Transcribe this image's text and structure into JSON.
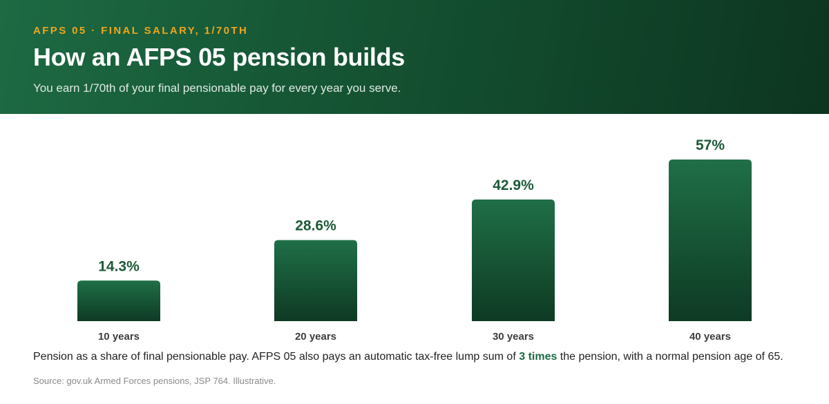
{
  "header": {
    "eyebrow": "AFPS 05 · FINAL SALARY, 1/70TH",
    "title": "How an AFPS 05 pension builds",
    "subtitle": "You earn 1/70th of your final pensionable pay for every year you serve."
  },
  "caption": {
    "before": "Pension as a share of final pensionable pay. AFPS 05 also pays an automatic tax-free lump sum of ",
    "highlight": "3 times",
    "after": " the pension, with a normal pension age of 65."
  },
  "source": "Source: gov.uk Armed Forces pensions, JSP 764. Illustrative.",
  "colors": {
    "bar_top": "#1f6f47",
    "bar_bottom": "#0e3a23",
    "accent": "#f0a51c"
  },
  "chart_data": {
    "type": "bar",
    "categories": [
      "10 years",
      "20 years",
      "30 years",
      "40 years"
    ],
    "values": [
      14.3,
      28.6,
      42.9,
      57
    ],
    "value_labels": [
      "14.3%",
      "28.6%",
      "42.9%",
      "57%"
    ],
    "unit": "%",
    "ylim": [
      0,
      57
    ],
    "grid": false,
    "legend": "none"
  }
}
